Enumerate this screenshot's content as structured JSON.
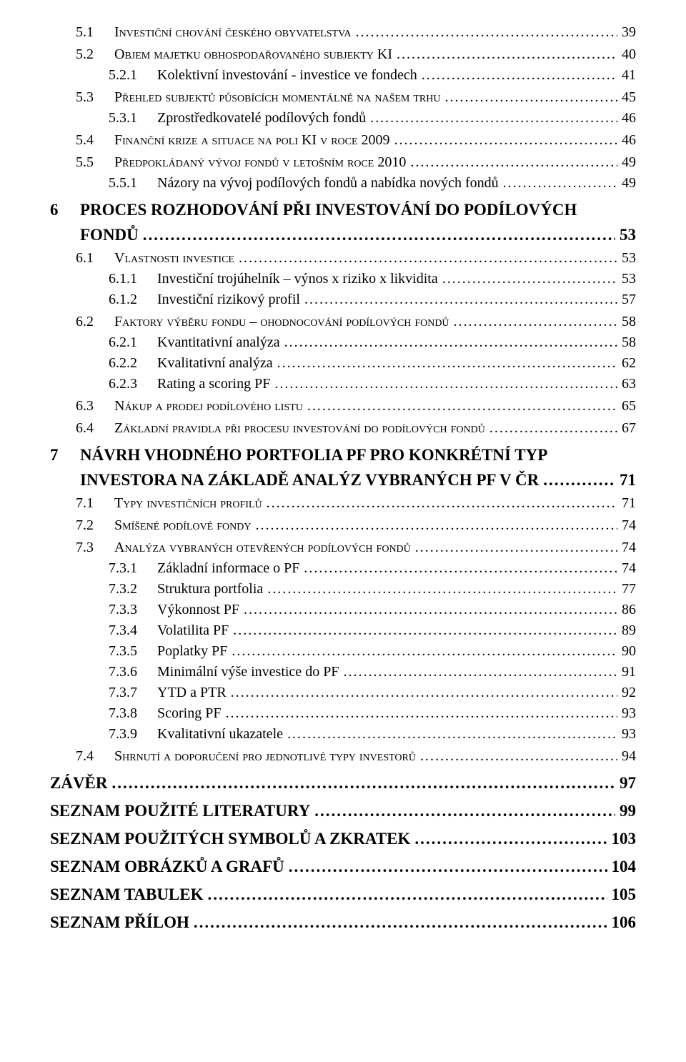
{
  "toc": [
    {
      "num": "5.1",
      "text": "Investiční chování českého obyvatelstva",
      "page": "39",
      "cls": "lvl2sc"
    },
    {
      "num": "5.2",
      "text": "Objem majetku obhospodařovaného subjekty KI",
      "page": "40",
      "cls": "lvl2sc"
    },
    {
      "num": "5.2.1",
      "text": "Kolektivní investování - investice ve fondech",
      "page": "41",
      "cls": "lvl3"
    },
    {
      "num": "5.3",
      "text": "Přehled subjektů působících momentálně na našem trhu",
      "page": "45",
      "cls": "lvl2sc"
    },
    {
      "num": "5.3.1",
      "text": "Zprostředkovatelé podílových fondů",
      "page": "46",
      "cls": "lvl3"
    },
    {
      "num": "5.4",
      "text": "Finanční krize a situace na poli KI v roce 2009",
      "page": "46",
      "cls": "lvl2sc"
    },
    {
      "num": "5.5",
      "text": "Předpokládaný vývoj fondů v letošním roce 2010",
      "page": "49",
      "cls": "lvl2sc"
    },
    {
      "num": "5.5.1",
      "text": "Názory na vývoj podílových fondů a nabídka nových fondů",
      "page": "49",
      "cls": "lvl3"
    },
    {
      "num": "6",
      "text": "PROCES ROZHODOVÁNÍ PŘI INVESTOVÁNÍ DO PODÍLOVÝCH FONDŮ",
      "page": "53",
      "cls": "lvl1",
      "wrap": true
    },
    {
      "num": "6.1",
      "text": "Vlastnosti investice",
      "page": "53",
      "cls": "lvl2sc"
    },
    {
      "num": "6.1.1",
      "text": "Investiční trojúhelník – výnos x riziko x likvidita",
      "page": "53",
      "cls": "lvl3"
    },
    {
      "num": "6.1.2",
      "text": "Investiční rizikový profil",
      "page": "57",
      "cls": "lvl3"
    },
    {
      "num": "6.2",
      "text": "Faktory výběru fondu – ohodnocování podílových fondů",
      "page": "58",
      "cls": "lvl2sc"
    },
    {
      "num": "6.2.1",
      "text": "Kvantitativní analýza",
      "page": "58",
      "cls": "lvl3"
    },
    {
      "num": "6.2.2",
      "text": "Kvalitativní analýza",
      "page": "62",
      "cls": "lvl3"
    },
    {
      "num": "6.2.3",
      "text": "Rating a scoring PF",
      "page": "63",
      "cls": "lvl3"
    },
    {
      "num": "6.3",
      "text": "Nákup a prodej podílového listu",
      "page": "65",
      "cls": "lvl2sc"
    },
    {
      "num": "6.4",
      "text": "Základní pravidla při procesu investování do podílových fondů",
      "page": "67",
      "cls": "lvl2sc"
    },
    {
      "num": "7",
      "text": "NÁVRH VHODNÉHO PORTFOLIA  PF PRO KONKRÉTNÍ TYP INVESTORA NA ZÁKLADĚ ANALÝZ VYBRANÝCH PF V ČR",
      "page": "71",
      "cls": "lvl1",
      "wrap": true
    },
    {
      "num": "7.1",
      "text": "Typy investičních profilů",
      "page": "71",
      "cls": "lvl2sc"
    },
    {
      "num": "7.2",
      "text": "Smíšené podílové fondy",
      "page": "74",
      "cls": "lvl2sc"
    },
    {
      "num": "7.3",
      "text": "Analýza vybraných otevřených podílových fondů",
      "page": "74",
      "cls": "lvl2sc"
    },
    {
      "num": "7.3.1",
      "text": "Základní informace o PF",
      "page": "74",
      "cls": "lvl3"
    },
    {
      "num": "7.3.2",
      "text": "Struktura portfolia",
      "page": "77",
      "cls": "lvl3"
    },
    {
      "num": "7.3.3",
      "text": "Výkonnost PF",
      "page": "86",
      "cls": "lvl3"
    },
    {
      "num": "7.3.4",
      "text": "Volatilita PF",
      "page": "89",
      "cls": "lvl3"
    },
    {
      "num": "7.3.5",
      "text": "Poplatky PF",
      "page": "90",
      "cls": "lvl3"
    },
    {
      "num": "7.3.6",
      "text": "Minimální výše investice do PF",
      "page": "91",
      "cls": "lvl3"
    },
    {
      "num": "7.3.7",
      "text": "YTD a PTR",
      "page": "92",
      "cls": "lvl3"
    },
    {
      "num": "7.3.8",
      "text": "Scoring PF",
      "page": "93",
      "cls": "lvl3"
    },
    {
      "num": "7.3.9",
      "text": "Kvalitativní ukazatele",
      "page": "93",
      "cls": "lvl3"
    },
    {
      "num": "7.4",
      "text": "Shrnutí a doporučení pro jednotlivé typy investorů",
      "page": "94",
      "cls": "lvl2sc"
    },
    {
      "num": "",
      "text": "ZÁVĚR",
      "page": "97",
      "cls": "lvl0"
    },
    {
      "num": "",
      "text": "SEZNAM POUŽITÉ LITERATURY",
      "page": "99",
      "cls": "lvl0"
    },
    {
      "num": "",
      "text": "SEZNAM POUŽITÝCH SYMBOLŮ A ZKRATEK",
      "page": "103",
      "cls": "lvl0"
    },
    {
      "num": "",
      "text": "SEZNAM OBRÁZKŮ A GRAFŮ",
      "page": "104",
      "cls": "lvl0"
    },
    {
      "num": "",
      "text": "SEZNAM TABULEK",
      "page": "105",
      "cls": "lvl0"
    },
    {
      "num": "",
      "text": "SEZNAM PŘÍLOH",
      "page": "106",
      "cls": "lvl0"
    }
  ]
}
